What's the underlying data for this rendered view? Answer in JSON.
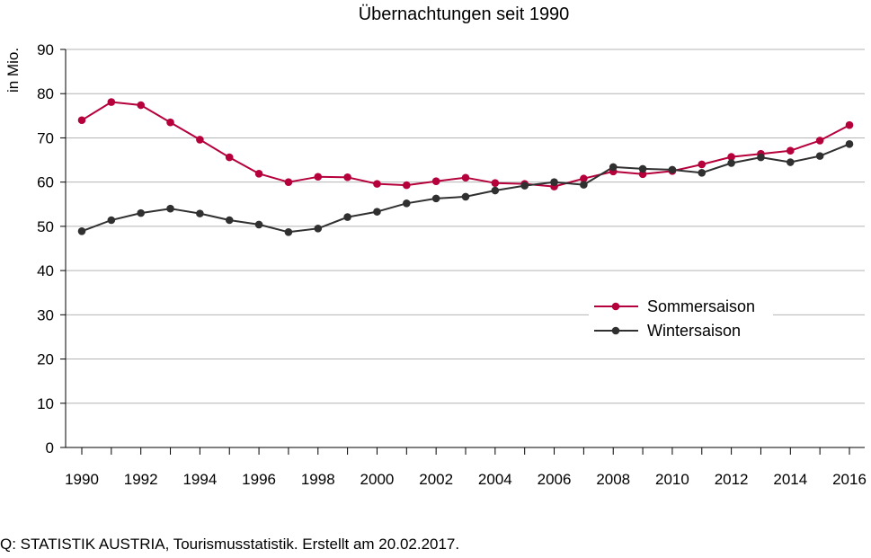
{
  "chart_data": {
    "type": "line",
    "title": "Übernachtungen seit 1990",
    "ylabel": "in Mio.",
    "xlabel": "",
    "ylim": [
      0,
      90
    ],
    "yticks": [
      0,
      10,
      20,
      30,
      40,
      50,
      60,
      70,
      80,
      90
    ],
    "xlim": [
      1990,
      2016
    ],
    "x": [
      1990,
      1991,
      1992,
      1993,
      1994,
      1995,
      1996,
      1997,
      1998,
      1999,
      2000,
      2001,
      2002,
      2003,
      2004,
      2005,
      2006,
      2007,
      2008,
      2009,
      2010,
      2011,
      2012,
      2013,
      2014,
      2015,
      2016
    ],
    "xtick_labels": [
      "1990",
      "1992",
      "1994",
      "1996",
      "1998",
      "2000",
      "2002",
      "2004",
      "2006",
      "2008",
      "2010",
      "2012",
      "2014",
      "2016"
    ],
    "grid": "horizontal",
    "legend_position": "center-right",
    "series": [
      {
        "name": "Sommersaison",
        "color": "#b5003b",
        "values": [
          74.0,
          78.1,
          77.4,
          73.5,
          69.6,
          65.6,
          61.9,
          60.0,
          61.2,
          61.1,
          59.6,
          59.3,
          60.2,
          61.0,
          59.8,
          59.6,
          59.0,
          60.8,
          62.4,
          61.8,
          62.5,
          64.0,
          65.7,
          66.4,
          67.1,
          69.4,
          72.9
        ]
      },
      {
        "name": "Wintersaison",
        "color": "#303030",
        "values": [
          48.9,
          51.4,
          53.0,
          54.0,
          52.9,
          51.4,
          50.4,
          48.7,
          49.5,
          52.1,
          53.3,
          55.2,
          56.3,
          56.7,
          58.1,
          59.2,
          60.0,
          59.4,
          63.4,
          63.0,
          62.8,
          62.1,
          64.3,
          65.6,
          64.5,
          65.9,
          68.6
        ]
      }
    ]
  },
  "footer": {
    "source": "Q: STATISTIK AUSTRIA, Tourismusstatistik. Erstellt am 20.02.2017."
  }
}
